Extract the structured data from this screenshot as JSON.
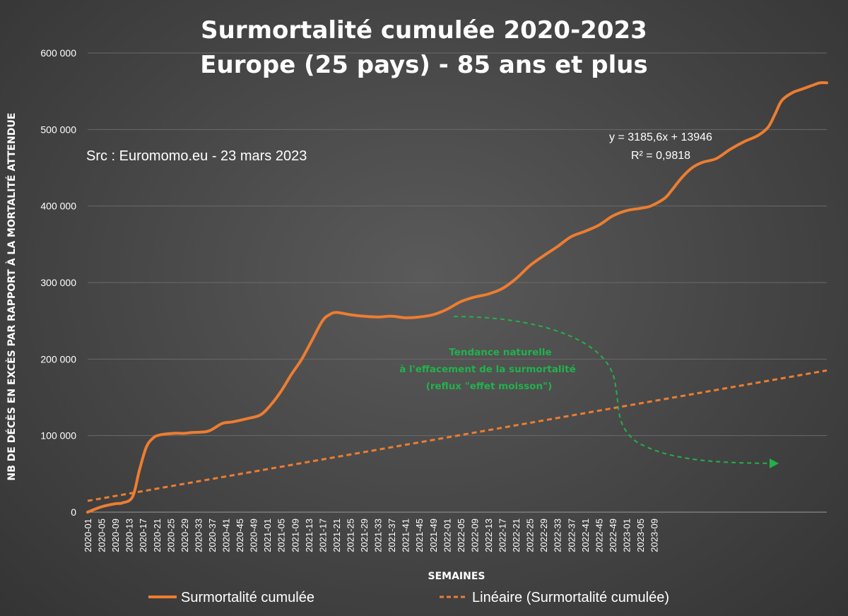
{
  "chart_data": {
    "type": "line",
    "title_line1": "Surmortalité cumulée 2020-2023",
    "title_line2": "Europe (25 pays) - 85 ans et plus",
    "ylabel": "NB DE DÉCÈS EN EXCÈS PAR RAPPORT À LA MORTALITÉ ATTENDUE",
    "xlabel": "SEMAINES",
    "ylim": [
      0,
      600000
    ],
    "yticks": [
      0,
      100000,
      200000,
      300000,
      400000,
      500000,
      600000
    ],
    "ytick_labels": [
      "0",
      "100 000",
      "200 000",
      "300 000",
      "400 000",
      "500 000",
      "600 000"
    ],
    "categories": [
      "2020-01",
      "2020-05",
      "2020-09",
      "2020-13",
      "2020-17",
      "2020-21",
      "2020-25",
      "2020-29",
      "2020-33",
      "2020-37",
      "2020-41",
      "2020-45",
      "2020-49",
      "2021-01",
      "2021-05",
      "2021-09",
      "2021-13",
      "2021-17",
      "2021-21",
      "2021-25",
      "2021-29",
      "2021-33",
      "2021-37",
      "2021-41",
      "2021-45",
      "2021-49",
      "2022-01",
      "2022-05",
      "2022-09",
      "2022-13",
      "2022-17",
      "2022-21",
      "2022-25",
      "2022-29",
      "2022-33",
      "2022-37",
      "2022-41",
      "2022-45",
      "2022-49",
      "2023-01",
      "2023-05",
      "2023-09"
    ],
    "grid": true,
    "legend_position": "bottom",
    "series": [
      {
        "name": "Surmortalité cumulée",
        "color": "#ed7d31",
        "style": "solid",
        "points": [
          [
            0,
            0
          ],
          [
            4,
            7000
          ],
          [
            8,
            11000
          ],
          [
            10,
            12000
          ],
          [
            13,
            20000
          ],
          [
            15,
            55000
          ],
          [
            17,
            85000
          ],
          [
            19,
            97000
          ],
          [
            21,
            101000
          ],
          [
            25,
            103000
          ],
          [
            28,
            103000
          ],
          [
            30,
            104000
          ],
          [
            34,
            105000
          ],
          [
            36,
            108000
          ],
          [
            39,
            116000
          ],
          [
            42,
            118000
          ],
          [
            46,
            122000
          ],
          [
            50,
            127000
          ],
          [
            53,
            140000
          ],
          [
            56,
            158000
          ],
          [
            59,
            180000
          ],
          [
            62,
            200000
          ],
          [
            65,
            225000
          ],
          [
            68,
            250000
          ],
          [
            70,
            258000
          ],
          [
            72,
            261000
          ],
          [
            76,
            258000
          ],
          [
            80,
            256000
          ],
          [
            84,
            255000
          ],
          [
            88,
            256000
          ],
          [
            92,
            254000
          ],
          [
            96,
            255000
          ],
          [
            100,
            258000
          ],
          [
            104,
            265000
          ],
          [
            108,
            275000
          ],
          [
            112,
            281000
          ],
          [
            116,
            285000
          ],
          [
            120,
            292000
          ],
          [
            124,
            305000
          ],
          [
            128,
            322000
          ],
          [
            132,
            335000
          ],
          [
            136,
            347000
          ],
          [
            140,
            360000
          ],
          [
            144,
            367000
          ],
          [
            148,
            375000
          ],
          [
            152,
            387000
          ],
          [
            156,
            394000
          ],
          [
            160,
            397000
          ],
          [
            163,
            400000
          ],
          [
            167,
            410000
          ],
          [
            169,
            420000
          ],
          [
            172,
            437000
          ],
          [
            175,
            450000
          ],
          [
            178,
            457000
          ],
          [
            182,
            462000
          ],
          [
            186,
            474000
          ],
          [
            190,
            484000
          ],
          [
            194,
            492000
          ],
          [
            197,
            503000
          ],
          [
            199,
            520000
          ],
          [
            201,
            538000
          ],
          [
            204,
            548000
          ],
          [
            207,
            553000
          ],
          [
            210,
            558000
          ],
          [
            212,
            561000
          ],
          [
            214,
            561000
          ]
        ]
      },
      {
        "name": "Linéaire (Surmortalité cumulée)",
        "color": "#ed7d31",
        "style": "dashed",
        "equation": "y = 3185,6x + 13946",
        "r2": "R² = 0,9818"
      }
    ],
    "annotations": {
      "source": "Src : Euromomo.eu  - 23 mars 2023",
      "equation_line1": "y = 3185,6x + 13946",
      "equation_line2": "R² = 0,9818",
      "note_line1": "Tendance naturelle",
      "note_line2": "à l'effacement de la surmortalité",
      "note_line3": "(reflux \"effet moisson\")",
      "note_color": "#22b14c"
    }
  }
}
